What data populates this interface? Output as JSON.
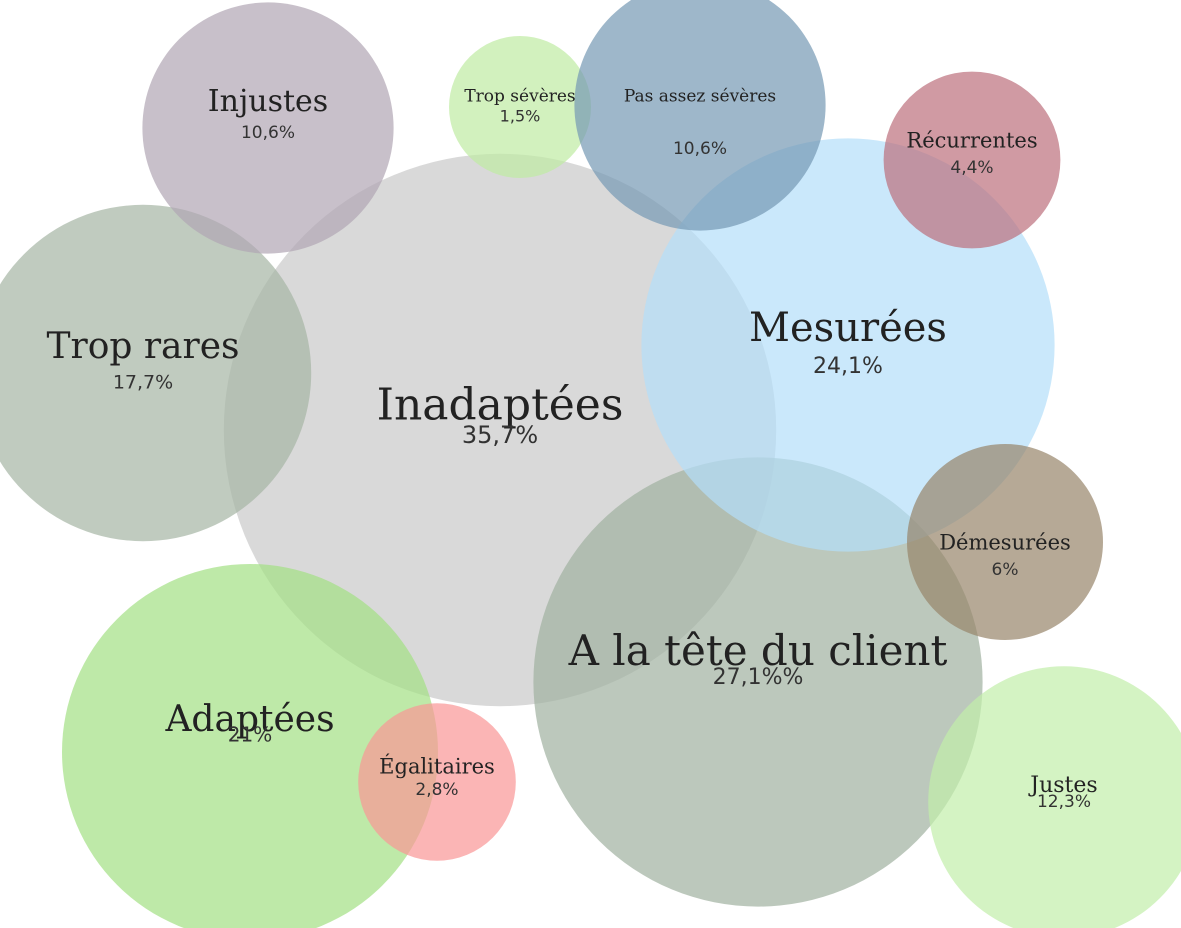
{
  "chart_data": {
    "type": "bubble",
    "categories": [
      "Inadaptées",
      "A la tête du client",
      "Mesurées",
      "Trop rares",
      "Injustes",
      "Trop sévères",
      "Pas assez sévères",
      "Récurrentes",
      "Démesurées",
      "Adaptées",
      "Égalitaires",
      "Justes"
    ],
    "values": [
      35.7,
      27.1,
      24.1,
      17.7,
      10.6,
      1.5,
      10.6,
      4.4,
      6,
      21,
      2.8,
      12.3
    ],
    "value_labels": [
      "35,7%",
      "27,1%%",
      "24,1%",
      "17,7%",
      "10,6%",
      "1,5%",
      "10,6%",
      "4,4%",
      "6%",
      "21%",
      "2,8%",
      "12,3%"
    ],
    "colors": [
      "#c9c9c9",
      "#9fb19f",
      "#b3defa",
      "#a5b5a4",
      "#b0a5b3",
      "#bfeba3",
      "#7599b3",
      "#bc6f7c",
      "#97846a",
      "#a3e083",
      "#f99595",
      "#c2eeaa"
    ]
  }
}
